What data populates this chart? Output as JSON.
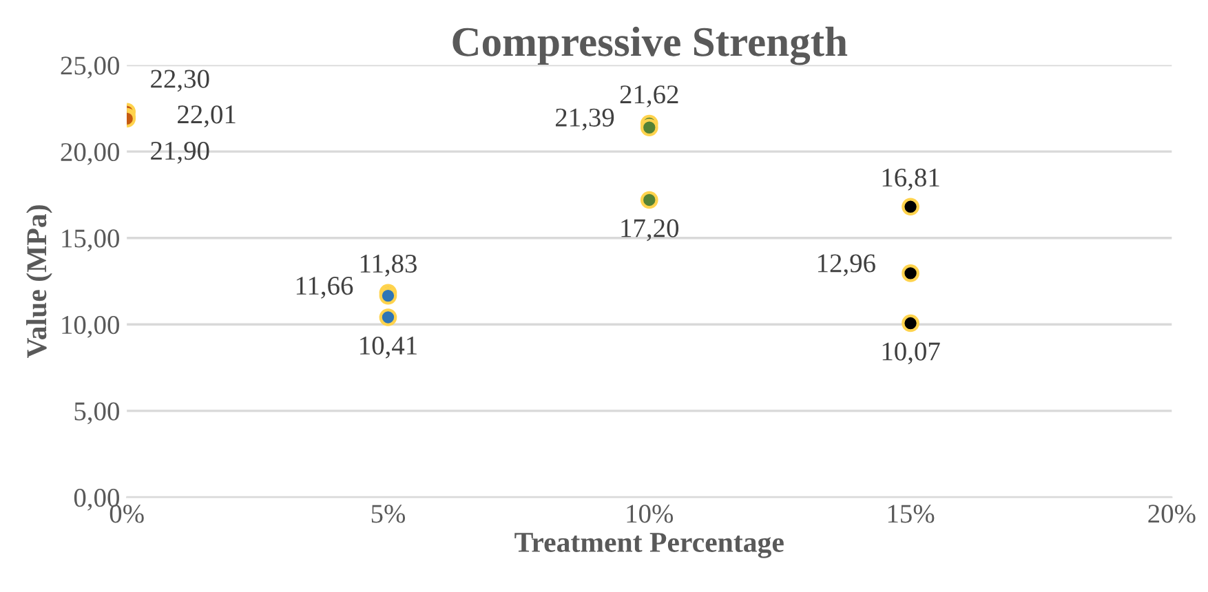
{
  "chart_data": {
    "type": "scatter",
    "title": "Compressive Strength",
    "xlabel": "Treatment Percentage",
    "ylabel": "Value (MPa)",
    "xlim": [
      0,
      20
    ],
    "xticks": [
      {
        "value": 0,
        "label": "0%"
      },
      {
        "value": 5,
        "label": "5%"
      },
      {
        "value": 10,
        "label": "10%"
      },
      {
        "value": 15,
        "label": "15%"
      },
      {
        "value": 20,
        "label": "20%"
      }
    ],
    "ylim": [
      0,
      25
    ],
    "yticks": [
      {
        "value": 0,
        "label": "0,00"
      },
      {
        "value": 5,
        "label": "5,00"
      },
      {
        "value": 10,
        "label": "10,00"
      },
      {
        "value": 15,
        "label": "15,00"
      },
      {
        "value": 20,
        "label": "20,00"
      },
      {
        "value": 25,
        "label": "25,00"
      }
    ],
    "grid": "y",
    "marker": "circle",
    "series": [
      {
        "color": "#c55a11",
        "x": [
          0,
          0,
          0
        ],
        "values": [
          22.3,
          22.01,
          21.9
        ],
        "value_labels": [
          "22,30",
          "22,01",
          "21,90"
        ]
      },
      {
        "color": "#2e75b6",
        "x": [
          5,
          5,
          5
        ],
        "values": [
          11.83,
          11.66,
          10.41
        ],
        "value_labels": [
          "11,83",
          "11,66",
          "10,41"
        ]
      },
      {
        "color": "#548235",
        "x": [
          10,
          10,
          10
        ],
        "values": [
          21.62,
          21.39,
          17.2
        ],
        "value_labels": [
          "21,62",
          "21,39",
          "17,20"
        ]
      },
      {
        "color": "#000000",
        "x": [
          15,
          15,
          15
        ],
        "values": [
          16.81,
          12.96,
          10.07
        ],
        "value_labels": [
          "16,81",
          "12,96",
          "10,07"
        ]
      }
    ]
  }
}
